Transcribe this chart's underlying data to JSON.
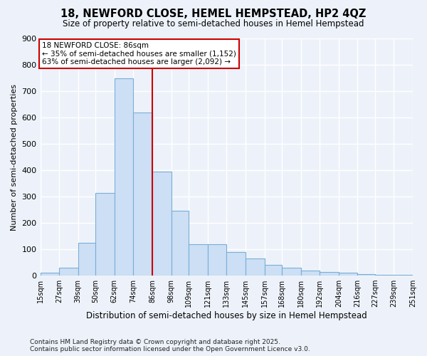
{
  "title": "18, NEWFORD CLOSE, HEMEL HEMPSTEAD, HP2 4QZ",
  "subtitle": "Size of property relative to semi-detached houses in Hemel Hempstead",
  "xlabel": "Distribution of semi-detached houses by size in Hemel Hempstead",
  "ylabel": "Number of semi-detached properties",
  "bar_color": "#ccdff5",
  "bar_edge_color": "#7aaed6",
  "property_line_color": "#cc0000",
  "property_size": 86,
  "annotation_title": "18 NEWFORD CLOSE: 86sqm",
  "annotation_line1": "← 35% of semi-detached houses are smaller (1,152)",
  "annotation_line2": "63% of semi-detached houses are larger (2,092) →",
  "annotation_box_color": "#ffffff",
  "annotation_box_edge_color": "#cc0000",
  "bins": [
    15,
    27,
    39,
    50,
    62,
    74,
    86,
    98,
    109,
    121,
    133,
    145,
    157,
    168,
    180,
    192,
    204,
    216,
    227,
    239,
    251
  ],
  "counts": [
    10,
    30,
    125,
    315,
    750,
    620,
    395,
    245,
    120,
    120,
    90,
    65,
    40,
    30,
    20,
    15,
    10,
    5,
    2,
    2
  ],
  "tick_labels": [
    "15sqm",
    "27sqm",
    "39sqm",
    "50sqm",
    "62sqm",
    "74sqm",
    "86sqm",
    "98sqm",
    "109sqm",
    "121sqm",
    "133sqm",
    "145sqm",
    "157sqm",
    "168sqm",
    "180sqm",
    "192sqm",
    "204sqm",
    "216sqm",
    "227sqm",
    "239sqm",
    "251sqm"
  ],
  "ylim": [
    0,
    900
  ],
  "yticks": [
    0,
    100,
    200,
    300,
    400,
    500,
    600,
    700,
    800,
    900
  ],
  "background_color": "#edf2fa",
  "grid_color": "#ffffff",
  "footnote1": "Contains HM Land Registry data © Crown copyright and database right 2025.",
  "footnote2": "Contains public sector information licensed under the Open Government Licence v3.0."
}
